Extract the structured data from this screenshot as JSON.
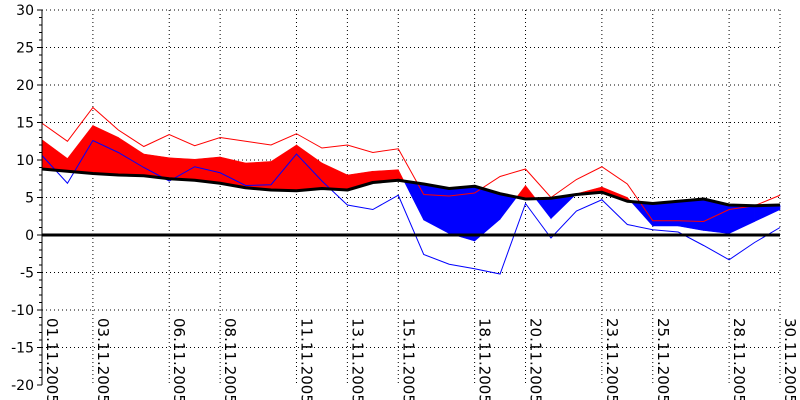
{
  "chart_data": {
    "type": "line",
    "title": "",
    "xlabel": "",
    "ylabel": "",
    "ylim": [
      -20,
      30
    ],
    "yticks": [
      30,
      25,
      20,
      15,
      10,
      5,
      0,
      -5,
      -10,
      -15,
      -20
    ],
    "grid": true,
    "x": [
      "01.11.2005",
      "02.11.2005",
      "03.11.2005",
      "04.11.2005",
      "05.11.2005",
      "06.11.2005",
      "07.11.2005",
      "08.11.2005",
      "09.11.2005",
      "10.11.2005",
      "11.11.2005",
      "12.11.2005",
      "13.11.2005",
      "14.11.2005",
      "15.11.2005",
      "16.11.2005",
      "17.11.2005",
      "18.11.2005",
      "19.11.2005",
      "20.11.2005",
      "21.11.2005",
      "22.11.2005",
      "23.11.2005",
      "24.11.2005",
      "25.11.2005",
      "26.11.2005",
      "27.11.2005",
      "28.11.2005",
      "29.11.2005",
      "30.11.2005"
    ],
    "xtick_labels": [
      "01.11.2005",
      "03.11.2005",
      "06.11.2005",
      "08.11.2005",
      "11.11.2005",
      "13.11.2005",
      "15.11.2005",
      "18.11.2005",
      "20.11.2005",
      "23.11.2005",
      "25.11.2005",
      "28.11.2005",
      "30.11.2005"
    ],
    "series": [
      {
        "role": "reference",
        "values": [
          8.8,
          8.5,
          8.2,
          8.0,
          7.9,
          7.5,
          7.3,
          6.9,
          6.3,
          6.0,
          5.9,
          6.2,
          6.0,
          7.0,
          7.3,
          6.8,
          6.2,
          6.5,
          5.5,
          4.8,
          4.9,
          5.4,
          5.7,
          4.5,
          4.2,
          4.5,
          4.8,
          4.0,
          3.9,
          4.0
        ]
      },
      {
        "role": "observed",
        "values": [
          12.7,
          10.2,
          14.6,
          13.0,
          10.8,
          10.3,
          10.1,
          10.4,
          9.6,
          9.8,
          12.0,
          9.6,
          8.0,
          8.5,
          8.7,
          2.0,
          0.2,
          -0.8,
          2.1,
          6.6,
          2.2,
          5.5,
          6.4,
          5.0,
          1.2,
          1.2,
          0.6,
          0.2,
          1.8,
          3.4
        ]
      },
      {
        "role": "upper",
        "values": [
          14.9,
          12.5,
          17.0,
          14.0,
          11.8,
          13.4,
          11.9,
          13.0,
          12.5,
          12.0,
          13.5,
          11.6,
          12.0,
          11.0,
          11.5,
          5.4,
          5.2,
          5.6,
          7.8,
          8.8,
          5.0,
          7.4,
          9.1,
          6.8,
          1.9,
          1.9,
          1.8,
          3.4,
          3.9,
          5.3
        ]
      },
      {
        "role": "lower",
        "values": [
          10.6,
          6.9,
          12.6,
          11.0,
          9.0,
          7.2,
          9.1,
          8.3,
          6.6,
          6.7,
          10.8,
          7.2,
          4.0,
          3.4,
          5.3,
          -2.6,
          -3.9,
          -4.5,
          -5.2,
          4.2,
          -0.4,
          3.2,
          4.7,
          1.4,
          0.7,
          0.4,
          -1.4,
          -3.3,
          -1.0,
          1.0
        ]
      }
    ],
    "colors": {
      "above": "#ff0000",
      "below": "#0000ff",
      "reference": "#000000",
      "upper": "#ff0000",
      "lower": "#0000ff",
      "zero_line": "#000000",
      "grid": "#000000"
    }
  }
}
